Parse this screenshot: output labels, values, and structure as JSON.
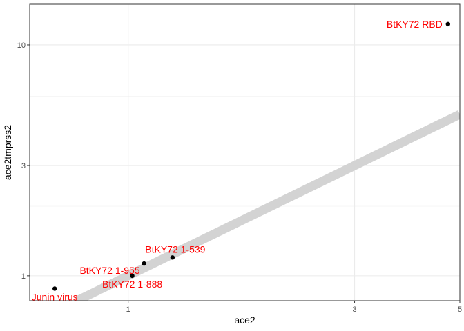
{
  "chart_data": {
    "type": "scatter",
    "title": "",
    "xlabel": "ace2",
    "ylabel": "ace2tmprss2",
    "xscale": "log10",
    "yscale": "log10",
    "xlim": [
      0.62,
      5.0
    ],
    "ylim": [
      0.78,
      15.0
    ],
    "x_ticks": [
      1,
      3,
      5
    ],
    "x_tick_labels": [
      "1",
      "3",
      "5"
    ],
    "x_minor_ticks": [
      2,
      4
    ],
    "y_ticks": [
      1,
      3,
      10
    ],
    "y_tick_labels": [
      "1",
      "3",
      "10"
    ],
    "y_minor_ticks": [
      2,
      6
    ],
    "grid": true,
    "legend": "none",
    "reference_line": {
      "type": "identity",
      "slope": 1,
      "intercept": 0,
      "color": "#d3d3d3"
    },
    "label_color": "#ff0000",
    "point_color": "#000000",
    "points": [
      {
        "label": "Junin virus",
        "x": 0.7,
        "y": 0.88,
        "label_anchor": "middle"
      },
      {
        "label": "BtKY72 1-888",
        "x": 1.02,
        "y": 1.0,
        "label_anchor": "middle"
      },
      {
        "label": "BtKY72 1-955",
        "x": 1.08,
        "y": 1.13,
        "label_anchor": "end"
      },
      {
        "label": "BtKY72 1-539",
        "x": 1.24,
        "y": 1.2,
        "label_anchor": "middle"
      },
      {
        "label": "BtKY72 RBD",
        "x": 4.72,
        "y": 12.3,
        "label_anchor": "end"
      }
    ]
  }
}
